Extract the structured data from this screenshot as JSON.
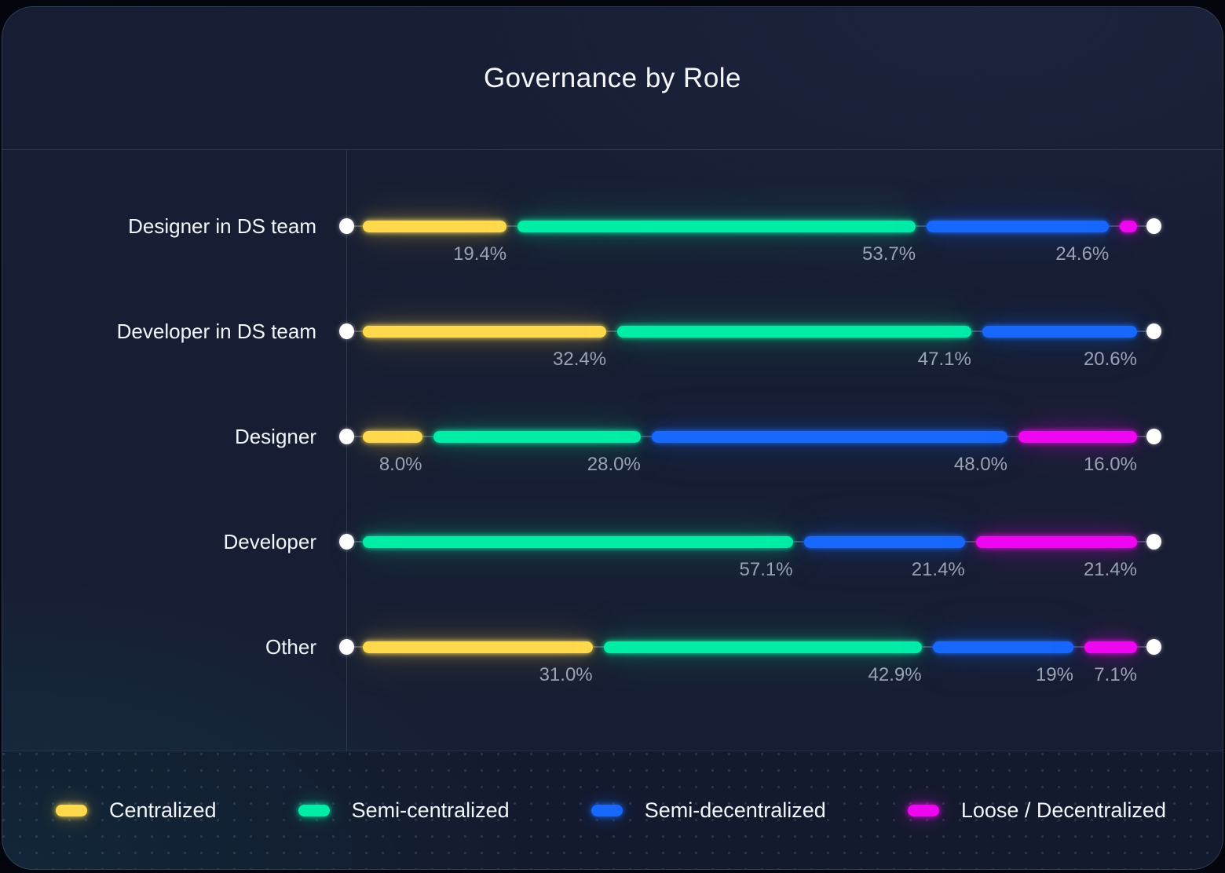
{
  "title": "Governance by Role",
  "colors": {
    "Centralized": "#ffd94b",
    "Semi-centralized": "#00eda6",
    "Semi-decentralized": "#1668ff",
    "Loose / Decentralized": "#ef06f0"
  },
  "legend": {
    "items": [
      {
        "label": "Centralized"
      },
      {
        "label": "Semi-centralized"
      },
      {
        "label": "Semi-decentralized"
      },
      {
        "label": "Loose / Decentralized"
      }
    ]
  },
  "chart_data": {
    "type": "bar",
    "stacked": true,
    "orientation": "horizontal",
    "title": "Governance by Role",
    "xlim": [
      0,
      100
    ],
    "legend_position": "bottom",
    "grid": false,
    "categories": [
      "Designer in DS team",
      "Developer in DS team",
      "Designer",
      "Developer",
      "Other"
    ],
    "series": [
      {
        "name": "Centralized",
        "color": "#ffd94b",
        "values": [
          19.4,
          32.4,
          8.0,
          0.0,
          31.0
        ]
      },
      {
        "name": "Semi-centralized",
        "color": "#00eda6",
        "values": [
          53.7,
          47.1,
          28.0,
          57.1,
          42.9
        ]
      },
      {
        "name": "Semi-decentralized",
        "color": "#1668ff",
        "values": [
          24.6,
          20.6,
          48.0,
          21.4,
          19.0
        ]
      },
      {
        "name": "Loose / Decentralized",
        "color": "#ef06f0",
        "values": [
          2.3,
          0.0,
          16.0,
          21.4,
          7.1
        ]
      }
    ],
    "value_labels": [
      [
        "19.4%",
        "53.7%",
        "24.6%",
        ""
      ],
      [
        "32.4%",
        "47.1%",
        "20.6%",
        ""
      ],
      [
        "8.0%",
        "28.0%",
        "48.0%",
        "16.0%"
      ],
      [
        "",
        "57.1%",
        "21.4%",
        "21.4%"
      ],
      [
        "31.0%",
        "42.9%",
        "19%",
        "7.1%"
      ]
    ]
  }
}
